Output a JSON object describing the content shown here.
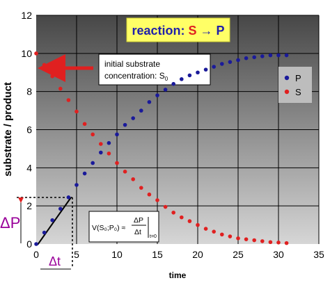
{
  "chart_data": {
    "type": "scatter",
    "title": "",
    "xlabel": "time",
    "ylabel": "substrate / product",
    "xlim": [
      0,
      35
    ],
    "ylim": [
      0,
      12
    ],
    "x_ticks": [
      "0",
      "5",
      "10",
      "15",
      "20",
      "25",
      "30",
      "35"
    ],
    "y_ticks": [
      "0",
      "2",
      "4",
      "6",
      "8",
      "10",
      "12"
    ],
    "grid": true,
    "legend_position": "right",
    "series": [
      {
        "name": "P",
        "color": "#1a1a9a",
        "marker": "circle",
        "x": [
          0,
          1,
          2,
          3,
          4,
          5,
          6,
          7,
          8,
          9,
          10,
          11,
          12,
          13,
          14,
          15,
          16,
          17,
          18,
          19,
          20,
          21,
          22,
          23,
          24,
          25,
          26,
          27,
          28,
          29,
          30,
          31
        ],
        "values": [
          0,
          0.6,
          1.25,
          1.85,
          2.45,
          3.1,
          3.7,
          4.25,
          4.8,
          5.3,
          5.75,
          6.25,
          6.6,
          7.0,
          7.45,
          7.8,
          8.1,
          8.4,
          8.65,
          8.85,
          9.0,
          9.15,
          9.3,
          9.45,
          9.55,
          9.65,
          9.75,
          9.8,
          9.85,
          9.9,
          9.9,
          9.9
        ]
      },
      {
        "name": "S",
        "color": "#e02020",
        "marker": "circle",
        "x": [
          0,
          1,
          2,
          3,
          4,
          5,
          6,
          7,
          8,
          9,
          10,
          11,
          12,
          13,
          14,
          15,
          16,
          17,
          18,
          19,
          20,
          21,
          22,
          23,
          24,
          25,
          26,
          27,
          28,
          29,
          30,
          31
        ],
        "values": [
          10.0,
          9.4,
          8.8,
          8.15,
          7.55,
          6.95,
          6.3,
          5.75,
          5.25,
          4.75,
          4.25,
          3.8,
          3.4,
          2.95,
          2.6,
          2.3,
          1.95,
          1.65,
          1.4,
          1.2,
          1.0,
          0.8,
          0.65,
          0.5,
          0.4,
          0.3,
          0.25,
          0.2,
          0.15,
          0.1,
          0.08,
          0.05
        ]
      }
    ],
    "annotations": {
      "reaction_prefix": "reaction: ",
      "reaction_s": "S",
      "reaction_arrow": " → ",
      "reaction_p": "P",
      "initial_line1": "initial substrate",
      "initial_line2": "concentration: S",
      "initial_sub": "0",
      "delta_p": "ΔP",
      "delta_t": "Δt",
      "rate_formula": "V(S₀;P₀) ≈",
      "rate_num": "ΔP",
      "rate_den": "Δt",
      "rate_eval": "t=0"
    }
  },
  "colors": {
    "plot_bg_top": "#4a4a4a",
    "plot_bg_bottom": "#d0d0d0",
    "reaction_box": "#ffff66",
    "reaction_text": "#2020aa",
    "accent_red": "#e02020",
    "delta_purple": "#990099"
  }
}
